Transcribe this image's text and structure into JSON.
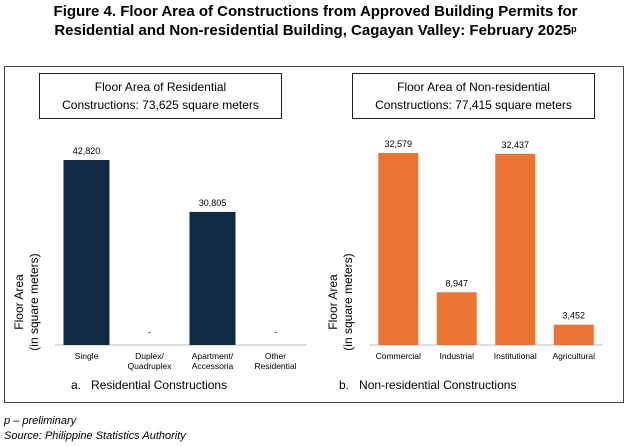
{
  "figure": {
    "title_line1": "Figure 4. Floor Area of Constructions from Approved Building Permits for",
    "title_line2": "Residential and Non-residential Building, Cagayan Valley: February 2025",
    "title_superscript": "p"
  },
  "footnotes": {
    "note": "p – preliminary",
    "source": "Source: Philippine Statistics Authority"
  },
  "chart_data": [
    {
      "type": "bar",
      "box_line1": "Floor Area of Residential",
      "box_line2": "Constructions: 73,625 square meters",
      "ylabel_line1": "Floor Area",
      "ylabel_line2": "(in square meters)",
      "caption_letter": "a.",
      "caption": "Residential Constructions",
      "categories": [
        [
          "Single"
        ],
        [
          "Duplex/",
          "Quadruplex"
        ],
        [
          "Apartment/",
          "Accessoria"
        ],
        [
          "Other",
          "Residential"
        ]
      ],
      "values": [
        42820,
        0,
        30805,
        0
      ],
      "labels": [
        "42,820",
        "-",
        "30,805",
        "-"
      ],
      "ylim": [
        0,
        45000
      ],
      "color": "#102a43",
      "grid": false
    },
    {
      "type": "bar",
      "box_line1": "Floor Area of Non-residential",
      "box_line2": "Constructions: 77,415 square meters",
      "ylabel_line1": "Floor Area",
      "ylabel_line2": "(in square meters)",
      "caption_letter": "b.",
      "caption": "Non-residential Constructions",
      "categories": [
        [
          "Commercial"
        ],
        [
          "Industrial"
        ],
        [
          "Institutional"
        ],
        [
          "Agricultural"
        ]
      ],
      "values": [
        32579,
        8947,
        32437,
        3452
      ],
      "labels": [
        "32,579",
        "8,947",
        "32,437",
        "3,452"
      ],
      "ylim": [
        0,
        35000
      ],
      "color": "#ed7333",
      "grid": false
    }
  ]
}
